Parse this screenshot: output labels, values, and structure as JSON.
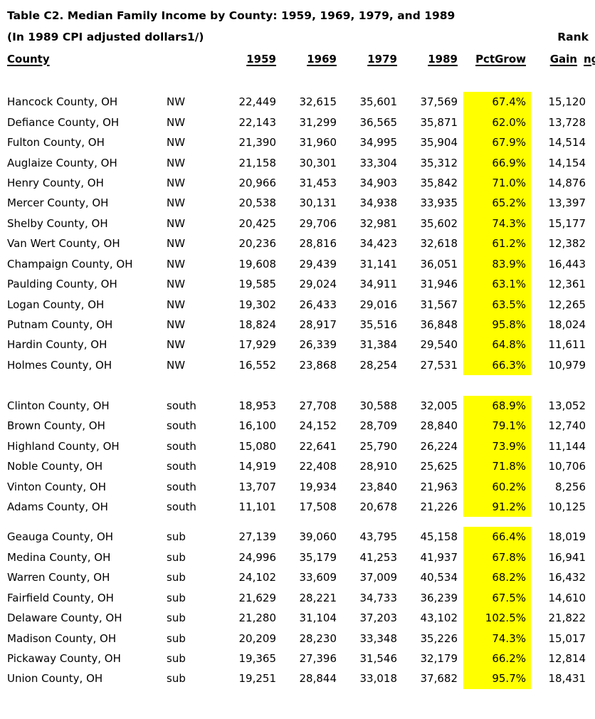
{
  "title": "Table C2. Median Family Income by County: 1959, 1969, 1979, and 1989",
  "subtitle": "(In 1989 CPI adjusted dollars1/)",
  "rank_label": "Rank",
  "highlight_color": "#ffff00",
  "columns": {
    "county": "County",
    "y1959": "1959",
    "y1969": "1969",
    "y1979": "1979",
    "y1989": "1989",
    "pct": "PctGrow",
    "gain": "Gain",
    "clipped": "ng"
  },
  "groups": [
    {
      "region": "NW",
      "rows": [
        {
          "county": "Hancock County, OH",
          "y1959": "22,449",
          "y1969": "32,615",
          "y1979": "35,601",
          "y1989": "37,569",
          "pct": "67.4%",
          "gain": "15,120"
        },
        {
          "county": "Defiance County, OH",
          "y1959": "22,143",
          "y1969": "31,299",
          "y1979": "36,565",
          "y1989": "35,871",
          "pct": "62.0%",
          "gain": "13,728"
        },
        {
          "county": "Fulton County, OH",
          "y1959": "21,390",
          "y1969": "31,960",
          "y1979": "34,995",
          "y1989": "35,904",
          "pct": "67.9%",
          "gain": "14,514"
        },
        {
          "county": "Auglaize County, OH",
          "y1959": "21,158",
          "y1969": "30,301",
          "y1979": "33,304",
          "y1989": "35,312",
          "pct": "66.9%",
          "gain": "14,154"
        },
        {
          "county": "Henry County, OH",
          "y1959": "20,966",
          "y1969": "31,453",
          "y1979": "34,903",
          "y1989": "35,842",
          "pct": "71.0%",
          "gain": "14,876"
        },
        {
          "county": "Mercer County, OH",
          "y1959": "20,538",
          "y1969": "30,131",
          "y1979": "34,938",
          "y1989": "33,935",
          "pct": "65.2%",
          "gain": "13,397"
        },
        {
          "county": "Shelby County, OH",
          "y1959": "20,425",
          "y1969": "29,706",
          "y1979": "32,981",
          "y1989": "35,602",
          "pct": "74.3%",
          "gain": "15,177"
        },
        {
          "county": "Van Wert County, OH",
          "y1959": "20,236",
          "y1969": "28,816",
          "y1979": "34,423",
          "y1989": "32,618",
          "pct": "61.2%",
          "gain": "12,382"
        },
        {
          "county": "Champaign County, OH",
          "y1959": "19,608",
          "y1969": "29,439",
          "y1979": "31,141",
          "y1989": "36,051",
          "pct": "83.9%",
          "gain": "16,443"
        },
        {
          "county": "Paulding County, OH",
          "y1959": "19,585",
          "y1969": "29,024",
          "y1979": "34,911",
          "y1989": "31,946",
          "pct": "63.1%",
          "gain": "12,361"
        },
        {
          "county": "Logan County, OH",
          "y1959": "19,302",
          "y1969": "26,433",
          "y1979": "29,016",
          "y1989": "31,567",
          "pct": "63.5%",
          "gain": "12,265"
        },
        {
          "county": "Putnam County, OH",
          "y1959": "18,824",
          "y1969": "28,917",
          "y1979": "35,516",
          "y1989": "36,848",
          "pct": "95.8%",
          "gain": "18,024"
        },
        {
          "county": "Hardin County, OH",
          "y1959": "17,929",
          "y1969": "26,339",
          "y1979": "31,384",
          "y1989": "29,540",
          "pct": "64.8%",
          "gain": "11,611"
        },
        {
          "county": "Holmes County, OH",
          "y1959": "16,552",
          "y1969": "23,868",
          "y1979": "28,254",
          "y1989": "27,531",
          "pct": "66.3%",
          "gain": "10,979"
        }
      ]
    },
    {
      "region": "south",
      "rows": [
        {
          "county": "Clinton County, OH",
          "y1959": "18,953",
          "y1969": "27,708",
          "y1979": "30,588",
          "y1989": "32,005",
          "pct": "68.9%",
          "gain": "13,052"
        },
        {
          "county": "Brown County, OH",
          "y1959": "16,100",
          "y1969": "24,152",
          "y1979": "28,709",
          "y1989": "28,840",
          "pct": "79.1%",
          "gain": "12,740"
        },
        {
          "county": "Highland County, OH",
          "y1959": "15,080",
          "y1969": "22,641",
          "y1979": "25,790",
          "y1989": "26,224",
          "pct": "73.9%",
          "gain": "11,144"
        },
        {
          "county": "Noble County, OH",
          "y1959": "14,919",
          "y1969": "22,408",
          "y1979": "28,910",
          "y1989": "25,625",
          "pct": "71.8%",
          "gain": "10,706"
        },
        {
          "county": "Vinton County, OH",
          "y1959": "13,707",
          "y1969": "19,934",
          "y1979": "23,840",
          "y1989": "21,963",
          "pct": "60.2%",
          "gain": "8,256"
        },
        {
          "county": "Adams County, OH",
          "y1959": "11,101",
          "y1969": "17,508",
          "y1979": "20,678",
          "y1989": "21,226",
          "pct": "91.2%",
          "gain": "10,125"
        }
      ]
    },
    {
      "region": "sub",
      "rows": [
        {
          "county": "Geauga County, OH",
          "y1959": "27,139",
          "y1969": "39,060",
          "y1979": "43,795",
          "y1989": "45,158",
          "pct": "66.4%",
          "gain": "18,019"
        },
        {
          "county": "Medina County, OH",
          "y1959": "24,996",
          "y1969": "35,179",
          "y1979": "41,253",
          "y1989": "41,937",
          "pct": "67.8%",
          "gain": "16,941"
        },
        {
          "county": "Warren County, OH",
          "y1959": "24,102",
          "y1969": "33,609",
          "y1979": "37,009",
          "y1989": "40,534",
          "pct": "68.2%",
          "gain": "16,432"
        },
        {
          "county": "Fairfield County, OH",
          "y1959": "21,629",
          "y1969": "28,221",
          "y1979": "34,733",
          "y1989": "36,239",
          "pct": "67.5%",
          "gain": "14,610"
        },
        {
          "county": "Delaware County, OH",
          "y1959": "21,280",
          "y1969": "31,104",
          "y1979": "37,203",
          "y1989": "43,102",
          "pct": "102.5%",
          "gain": "21,822"
        },
        {
          "county": "Madison County, OH",
          "y1959": "20,209",
          "y1969": "28,230",
          "y1979": "33,348",
          "y1989": "35,226",
          "pct": "74.3%",
          "gain": "15,017"
        },
        {
          "county": "Pickaway County, OH",
          "y1959": "19,365",
          "y1969": "27,396",
          "y1979": "31,546",
          "y1989": "32,179",
          "pct": "66.2%",
          "gain": "12,814"
        },
        {
          "county": "Union County, OH",
          "y1959": "19,251",
          "y1969": "28,844",
          "y1979": "33,018",
          "y1989": "37,682",
          "pct": "95.7%",
          "gain": "18,431"
        }
      ]
    }
  ]
}
